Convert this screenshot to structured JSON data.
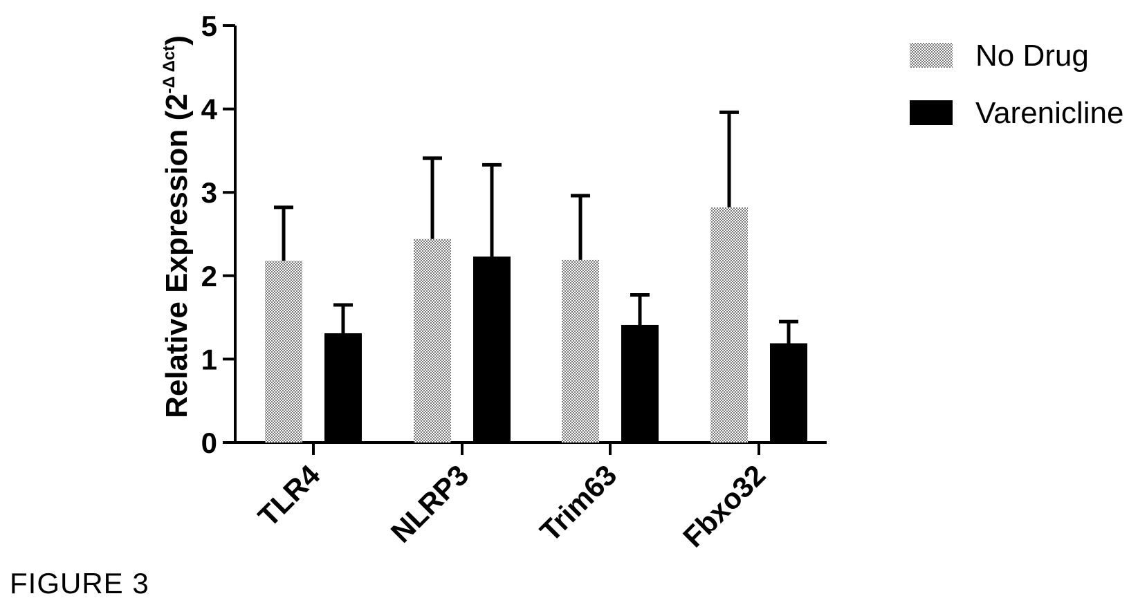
{
  "figure_caption": "FIGURE 3",
  "chart_data": {
    "type": "bar",
    "categories": [
      "TLR4",
      "NLRP3",
      "Trim63",
      "Fbxo32"
    ],
    "series": [
      {
        "name": "No Drug",
        "values": [
          2.18,
          2.44,
          2.19,
          2.82
        ],
        "error": [
          0.64,
          0.97,
          0.77,
          1.14
        ],
        "fill": "pattern-dots"
      },
      {
        "name": "Varenicline",
        "values": [
          1.31,
          2.23,
          1.41,
          1.19
        ],
        "error": [
          0.34,
          1.1,
          0.36,
          0.26
        ],
        "fill": "#000000"
      }
    ],
    "ylabel_main": "Relative Expression (2",
    "ylabel_sup": "-Δ Δct",
    "ylabel_close": ")",
    "ylim": [
      0,
      5
    ],
    "yticks": [
      "0",
      "1",
      "2",
      "3",
      "4",
      "5"
    ],
    "legend_position": "top-right",
    "grid": false
  }
}
